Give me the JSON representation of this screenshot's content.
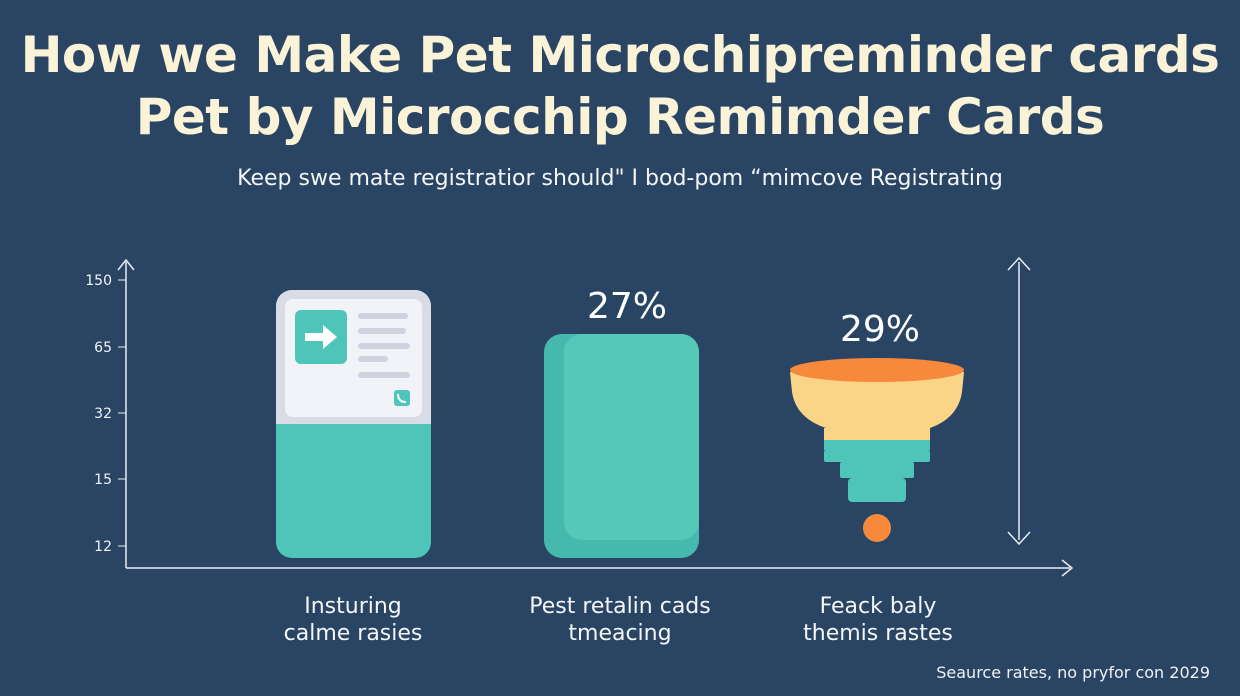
{
  "header": {
    "title_line1": "How we Make Pet Microchipreminder cards",
    "title_line2": "Pet by Microcchip Remimder Cards",
    "subtitle": "Keep swe mate registratior should\" I bod-pom “mimcove Registrating"
  },
  "chart_data": {
    "type": "bar",
    "y_ticks": [
      "150",
      "65",
      "32",
      "15",
      "12"
    ],
    "categories": [
      [
        "Insturing",
        "calme rasies"
      ],
      [
        "Pest retalin cads",
        "tmeacing"
      ],
      [
        "Feack baly",
        "themis rastes"
      ]
    ],
    "data_labels": [
      "",
      "27%",
      "29%"
    ],
    "grid": false,
    "colors": {
      "teal": "#4ec5b8",
      "teal_light": "#5fd2c4",
      "card": "#eef0f6",
      "orange": "#f7893d",
      "cream": "#fbd587",
      "axis": "#e8edf2"
    },
    "icons": [
      "phone-card-icon",
      "arrow-right-icon",
      "phone-icon",
      "funnel-icon"
    ]
  },
  "footer": {
    "source": "Seaurce rates, no pryfor con 2029"
  }
}
